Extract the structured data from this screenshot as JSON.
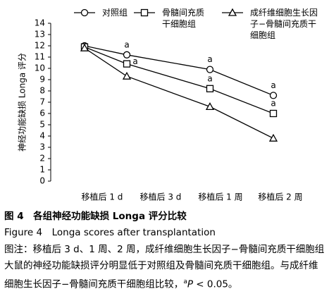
{
  "chart_data": {
    "type": "line",
    "y_label": "神经功能缺损 Longa 评分",
    "categories": [
      "移植后 1 d",
      "移植后 3 d",
      "移植后 1 周",
      "移植后 2 周"
    ],
    "series": [
      {
        "name": "对照组",
        "marker": "circle",
        "color": "#000000",
        "values": [
          12.0,
          11.2,
          9.9,
          7.6
        ],
        "annotations": [
          null,
          "a",
          "a",
          "a"
        ]
      },
      {
        "name": "骨髓间充质干细胞组",
        "marker": "square",
        "color": "#000000",
        "values": [
          11.9,
          10.4,
          8.2,
          6.0
        ],
        "annotations": [
          null,
          "a",
          "a",
          "a"
        ]
      },
      {
        "name": "成纤维细胞生长因子−骨髓间充质干细胞组",
        "marker": "triangle",
        "color": "#000000",
        "values": [
          11.8,
          9.3,
          6.6,
          3.8
        ]
      }
    ],
    "ylim": [
      0,
      14
    ],
    "yticks": [
      0,
      1,
      2,
      3,
      4,
      5,
      6,
      7,
      8,
      9,
      10,
      11,
      12,
      13,
      14
    ]
  },
  "caption": {
    "title_cn": "图 4　各组神经功能缺损 Longa 评分比较",
    "title_en": "Figure 4　Longa scores after transplantation",
    "note": "图注：移植后 3 d、1 周、2 周，成纤维细胞生长因子−骨髓间充质干细胞组大鼠的神经功能缺损评分明显低于对照组及骨髓间充质干细胞组。与成纤维细胞生长因子−骨髓间充质干细胞组比较，",
    "note_sup": "a",
    "note_p": "P",
    "note_end": " < 0.05。"
  }
}
